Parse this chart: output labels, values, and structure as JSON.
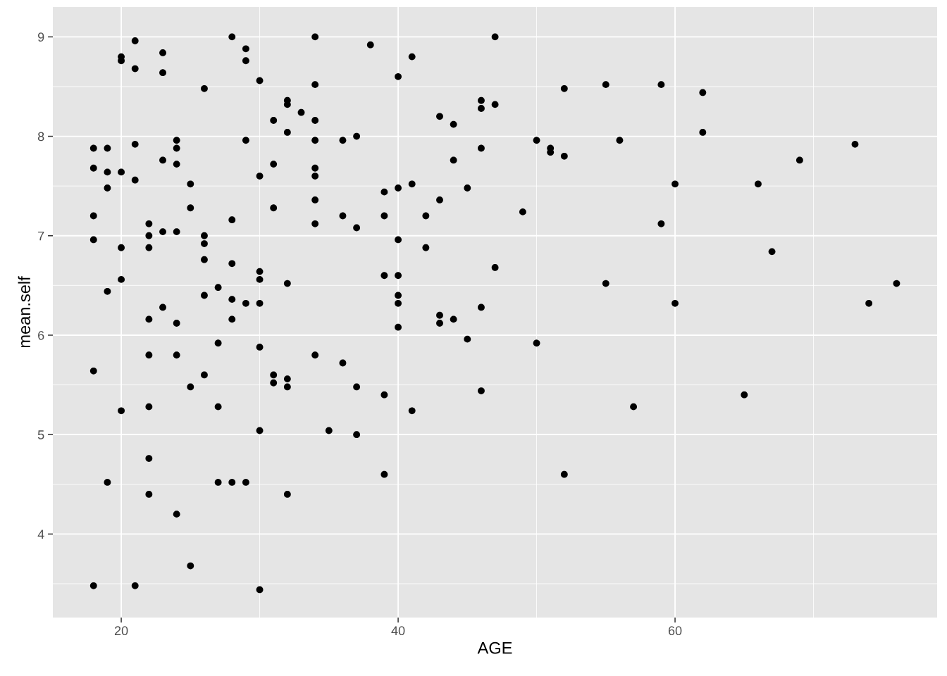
{
  "chart_data": {
    "type": "scatter",
    "xlabel": "AGE",
    "ylabel": "mean.self",
    "x": [
      18,
      18,
      18,
      18,
      18,
      18,
      19,
      19,
      19,
      19,
      19,
      20,
      20,
      20,
      20,
      20,
      20,
      21,
      21,
      21,
      21,
      21,
      22,
      22,
      22,
      22,
      22,
      22,
      22,
      22,
      23,
      23,
      23,
      23,
      23,
      24,
      24,
      24,
      24,
      24,
      24,
      24,
      25,
      25,
      25,
      25,
      26,
      26,
      26,
      26,
      26,
      26,
      27,
      27,
      27,
      27,
      28,
      28,
      28,
      28,
      28,
      28,
      29,
      29,
      29,
      29,
      29,
      30,
      30,
      30,
      30,
      30,
      30,
      30,
      30,
      31,
      31,
      31,
      31,
      31,
      32,
      32,
      32,
      32,
      32,
      32,
      32,
      33,
      34,
      34,
      34,
      34,
      34,
      34,
      34,
      34,
      34,
      35,
      36,
      36,
      36,
      37,
      37,
      37,
      37,
      38,
      39,
      39,
      39,
      39,
      39,
      40,
      40,
      40,
      40,
      40,
      40,
      40,
      41,
      41,
      41,
      42,
      42,
      43,
      43,
      43,
      43,
      44,
      44,
      44,
      45,
      45,
      46,
      46,
      46,
      46,
      46,
      47,
      47,
      47,
      49,
      50,
      50,
      51,
      51,
      52,
      52,
      52,
      55,
      55,
      56,
      57,
      59,
      59,
      60,
      60,
      62,
      62,
      65,
      66,
      67,
      69,
      73,
      74,
      76
    ],
    "values": [
      7.88,
      7.68,
      7.2,
      6.96,
      5.64,
      3.48,
      7.88,
      7.64,
      7.48,
      6.44,
      4.52,
      8.8,
      8.76,
      7.64,
      6.88,
      6.56,
      5.24,
      8.96,
      8.68,
      7.92,
      7.56,
      3.48,
      7.12,
      7.0,
      6.88,
      6.16,
      5.8,
      5.28,
      4.76,
      4.4,
      8.84,
      8.64,
      7.76,
      7.04,
      6.28,
      7.96,
      7.88,
      7.72,
      7.04,
      6.12,
      5.8,
      4.2,
      7.52,
      7.28,
      5.48,
      3.68,
      8.48,
      7.0,
      6.92,
      6.76,
      6.4,
      5.6,
      6.48,
      5.92,
      5.28,
      4.52,
      9.0,
      7.16,
      6.72,
      6.36,
      6.16,
      4.52,
      8.88,
      8.76,
      7.96,
      6.32,
      4.52,
      8.56,
      7.6,
      6.64,
      6.56,
      6.32,
      5.88,
      5.04,
      3.44,
      8.16,
      7.72,
      7.28,
      5.6,
      5.52,
      8.36,
      8.32,
      8.04,
      6.52,
      5.56,
      5.48,
      4.4,
      8.24,
      9.0,
      8.52,
      8.16,
      7.96,
      7.68,
      7.6,
      7.36,
      7.12,
      5.8,
      5.04,
      7.96,
      7.2,
      5.72,
      8.0,
      7.08,
      5.48,
      5.0,
      8.92,
      7.44,
      7.2,
      6.6,
      5.4,
      4.6,
      8.6,
      7.48,
      6.96,
      6.6,
      6.4,
      6.32,
      6.08,
      8.8,
      7.52,
      5.24,
      7.2,
      6.88,
      8.2,
      7.36,
      6.2,
      6.12,
      8.12,
      7.76,
      6.16,
      7.48,
      5.96,
      8.36,
      8.28,
      7.88,
      6.28,
      5.44,
      9.0,
      8.32,
      6.68,
      7.24,
      7.96,
      5.92,
      7.88,
      7.84,
      8.48,
      7.8,
      4.6,
      8.52,
      6.52,
      7.96,
      5.28,
      8.52,
      7.12,
      7.52,
      6.32,
      8.44,
      8.04,
      5.4,
      7.52,
      6.84,
      7.76,
      7.92,
      6.32,
      6.52
    ],
    "color": "#000000",
    "marker": "circle",
    "xlim": [
      15.06,
      78.93
    ],
    "xticks": [
      20,
      40,
      60
    ],
    "ylim": [
      3.16,
      9.3
    ],
    "yticks": [
      4,
      5,
      6,
      7,
      8,
      9
    ],
    "grid": true
  }
}
